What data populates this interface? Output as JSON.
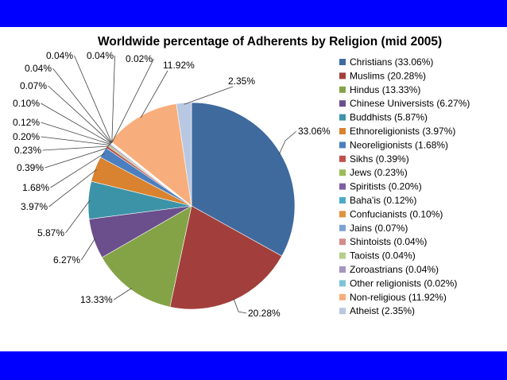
{
  "chart_data": {
    "type": "pie",
    "title": "Worldwide percentage of Adherents by Religion (mid 2005)",
    "legend_position": "right",
    "series": [
      {
        "name": "Christians",
        "value": 33.06,
        "label": "33.06%",
        "legend": "Christians (33.06%)",
        "color": "#3f6a9e"
      },
      {
        "name": "Muslims",
        "value": 20.28,
        "label": "20.28%",
        "legend": "Muslims (20.28%)",
        "color": "#a23f3c"
      },
      {
        "name": "Hindus",
        "value": 13.33,
        "label": "13.33%",
        "legend": "Hindus (13.33%)",
        "color": "#84a346"
      },
      {
        "name": "Chinese Universists",
        "value": 6.27,
        "label": "6.27%",
        "legend": "Chinese Universists (6.27%)",
        "color": "#6a4f8c"
      },
      {
        "name": "Buddhists",
        "value": 5.87,
        "label": "5.87%",
        "legend": "Buddhists (5.87%)",
        "color": "#3c93a8"
      },
      {
        "name": "Ethnoreligionists",
        "value": 3.97,
        "label": "3.97%",
        "legend": "Ethnoreligionists (3.97%)",
        "color": "#d9822f"
      },
      {
        "name": "Neoreligionists",
        "value": 1.68,
        "label": "1.68%",
        "legend": "Neoreligionists (1.68%)",
        "color": "#4c7fbf"
      },
      {
        "name": "Sikhs",
        "value": 0.39,
        "label": "0.39%",
        "legend": "Sikhs (0.39%)",
        "color": "#c0504d"
      },
      {
        "name": "Jews",
        "value": 0.23,
        "label": "0.23%",
        "legend": "Jews (0.23%)",
        "color": "#9bbb59"
      },
      {
        "name": "Spiritists",
        "value": 0.2,
        "label": "0.20%",
        "legend": "Spiritists (0.20%)",
        "color": "#7e60a2"
      },
      {
        "name": "Baha'is",
        "value": 0.12,
        "label": "0.12%",
        "legend": "Baha'is (0.12%)",
        "color": "#4bacc6"
      },
      {
        "name": "Confucianists",
        "value": 0.1,
        "label": "0.10%",
        "legend": "Confucianists (0.10%)",
        "color": "#e0923c"
      },
      {
        "name": "Jains",
        "value": 0.07,
        "label": "0.07%",
        "legend": "Jains (0.07%)",
        "color": "#7da1d4"
      },
      {
        "name": "Shintoists",
        "value": 0.04,
        "label": "0.04%",
        "legend": "Shintoists (0.04%)",
        "color": "#d48b89"
      },
      {
        "name": "Taoists",
        "value": 0.04,
        "label": "0.04%",
        "legend": "Taoists (0.04%)",
        "color": "#b5cd8c"
      },
      {
        "name": "Zoroastrians",
        "value": 0.04,
        "label": "0.04%",
        "legend": "Zoroastrians (0.04%)",
        "color": "#a596c0"
      },
      {
        "name": "Other religionists",
        "value": 0.02,
        "label": "0.02%",
        "legend": "Other religionists (0.02%)",
        "color": "#7fc4d6"
      },
      {
        "name": "Non-religious",
        "value": 11.92,
        "label": "11.92%",
        "legend": "Non-religious (11.92%)",
        "color": "#f7ae7c"
      },
      {
        "name": "Atheist",
        "value": 2.35,
        "label": "2.35%",
        "legend": "Atheist (2.35%)",
        "color": "#b9c8e2"
      }
    ]
  },
  "frame": {
    "background": "#0000ff"
  }
}
